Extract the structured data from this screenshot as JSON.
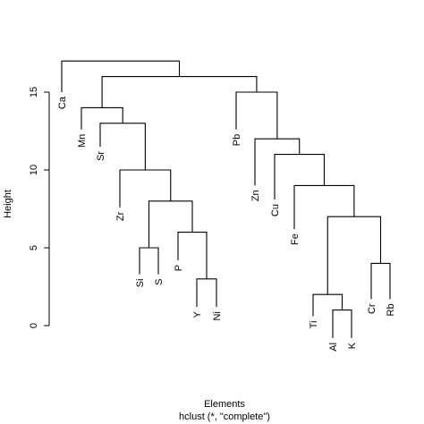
{
  "chart_data": {
    "type": "dendrogram",
    "xlabel": "Elements",
    "sublabel": "hclust (*, \"complete\")",
    "ylabel": "Height",
    "ylim": [
      0,
      17.5
    ],
    "yticks": [
      "0",
      "5",
      "10",
      "15"
    ],
    "ytick_values": [
      0,
      5,
      10,
      15
    ],
    "leaves": [
      {
        "label": "Ca",
        "index": 0
      },
      {
        "label": "Mn",
        "index": 1
      },
      {
        "label": "Sr",
        "index": 2
      },
      {
        "label": "Zr",
        "index": 3
      },
      {
        "label": "Si",
        "index": 4
      },
      {
        "label": "S",
        "index": 5
      },
      {
        "label": "P",
        "index": 6
      },
      {
        "label": "Y",
        "index": 7
      },
      {
        "label": "Ni",
        "index": 8
      },
      {
        "label": "Pb",
        "index": 9
      },
      {
        "label": "Zn",
        "index": 10
      },
      {
        "label": "Cu",
        "index": 11
      },
      {
        "label": "Fe",
        "index": 12
      },
      {
        "label": "Ti",
        "index": 13
      },
      {
        "label": "Al",
        "index": 14
      },
      {
        "label": "K",
        "index": 15
      },
      {
        "label": "Cr",
        "index": 16
      },
      {
        "label": "Rb",
        "index": 17
      }
    ],
    "leaf_bottoms": [
      15.0,
      12.6,
      11.5,
      7.6,
      3.3,
      3.3,
      4.2,
      1.2,
      1.2,
      12.6,
      9.0,
      8.1,
      6.2,
      0.6,
      -0.8,
      -0.8,
      1.7,
      1.7
    ],
    "merges": [
      {
        "name": "merge-al-k",
        "left": 14,
        "right": 15,
        "height": 1.0
      },
      {
        "name": "merge-y-ni",
        "left": 7,
        "right": 8,
        "height": 3.0
      },
      {
        "name": "merge-ti-alk",
        "left": 13,
        "right": "merge-al-k",
        "height": 2.0
      },
      {
        "name": "merge-cr-rb",
        "left": 16,
        "right": 17,
        "height": 4.0
      },
      {
        "name": "merge-si-s",
        "left": 4,
        "right": 5,
        "height": 5.0
      },
      {
        "name": "merge-p-yni",
        "left": 6,
        "right": "merge-y-ni",
        "height": 6.0
      },
      {
        "name": "merge-sis-pyni",
        "left": "merge-si-s",
        "right": "merge-p-yni",
        "height": 8.0
      },
      {
        "name": "merge-tialk-crrb",
        "left": "merge-ti-alk",
        "right": "merge-cr-rb",
        "height": 7.0
      },
      {
        "name": "merge-fe-group",
        "left": 12,
        "right": "merge-tialk-crrb",
        "height": 9.0
      },
      {
        "name": "merge-zr-group",
        "left": 3,
        "right": "merge-sis-pyni",
        "height": 10.0
      },
      {
        "name": "merge-cu-group",
        "left": 11,
        "right": "merge-fe-group",
        "height": 11.0
      },
      {
        "name": "merge-zn-group",
        "left": 10,
        "right": "merge-cu-group",
        "height": 12.0
      },
      {
        "name": "merge-sr-group",
        "left": 2,
        "right": "merge-zr-group",
        "height": 13.0
      },
      {
        "name": "merge-mn-group",
        "left": 1,
        "right": "merge-sr-group",
        "height": 14.0
      },
      {
        "name": "merge-pb-group",
        "left": 9,
        "right": "merge-zn-group",
        "height": 15.0
      },
      {
        "name": "merge-mn-pb",
        "left": "merge-mn-group",
        "right": "merge-pb-group",
        "height": 16.0
      },
      {
        "name": "merge-root",
        "left": 0,
        "right": "merge-mn-pb",
        "height": 17.0
      }
    ]
  }
}
